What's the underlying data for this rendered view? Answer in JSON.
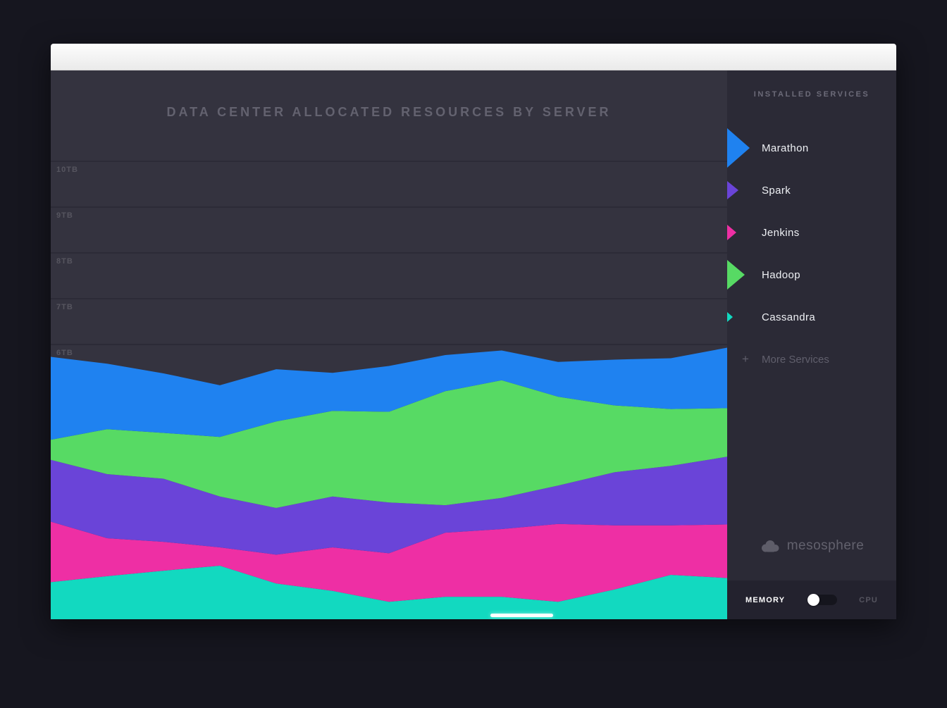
{
  "chart": {
    "title": "DATA CENTER ALLOCATED RESOURCES BY SERVER"
  },
  "chart_data": {
    "type": "area",
    "stacked": true,
    "title": "DATA CENTER ALLOCATED RESOURCES BY SERVER",
    "ylabel": "TB",
    "ylim": [
      0,
      12
    ],
    "grid": true,
    "x_axis_labels_visible": false,
    "y_ticks": [
      {
        "label": "10TB",
        "value": 10
      },
      {
        "label": "9TB",
        "value": 9
      },
      {
        "label": "8TB",
        "value": 8
      },
      {
        "label": "7TB",
        "value": 7
      },
      {
        "label": "6TB",
        "value": 6
      }
    ],
    "series_order": "bottom-to-top",
    "series": [
      {
        "name": "Cassandra",
        "color": "#12d9c0",
        "values": [
          0.81,
          0.94,
          1.06,
          1.17,
          0.78,
          0.62,
          0.38,
          0.49,
          0.49,
          0.38,
          0.65,
          0.97,
          0.9
        ]
      },
      {
        "name": "Jenkins",
        "color": "#ee2fa4",
        "values": [
          1.32,
          0.83,
          0.63,
          0.4,
          0.63,
          0.95,
          1.06,
          1.4,
          1.48,
          1.7,
          1.4,
          1.08,
          1.17
        ]
      },
      {
        "name": "Spark",
        "color": "#6a44d8",
        "values": [
          1.35,
          1.4,
          1.38,
          1.11,
          1.02,
          1.11,
          1.11,
          0.6,
          0.68,
          0.84,
          1.16,
          1.3,
          1.48
        ]
      },
      {
        "name": "Hadoop",
        "color": "#57da64",
        "values": [
          0.44,
          0.98,
          1.0,
          1.3,
          1.89,
          1.87,
          1.98,
          2.49,
          2.57,
          1.94,
          1.46,
          1.24,
          1.06
        ]
      },
      {
        "name": "Marathon",
        "color": "#1f82f0",
        "values": [
          1.81,
          1.43,
          1.3,
          1.13,
          1.14,
          0.83,
          1.0,
          0.79,
          0.65,
          0.76,
          1.0,
          1.11,
          1.32
        ]
      }
    ],
    "style": {
      "background": "#34333f",
      "gridline_color": "#2c2b37",
      "tick_label_color": "#56555f"
    }
  },
  "sidebar": {
    "header": "INSTALLED SERVICES",
    "services": [
      {
        "label": "Marathon",
        "color": "#1f82f0",
        "arrow_size": 56
      },
      {
        "label": "Spark",
        "color": "#6a44d8",
        "arrow_size": 27
      },
      {
        "label": "Jenkins",
        "color": "#ee2fa4",
        "arrow_size": 23
      },
      {
        "label": "Hadoop",
        "color": "#57da64",
        "arrow_size": 43
      },
      {
        "label": "Cassandra",
        "color": "#12d9c0",
        "arrow_size": 14
      }
    ],
    "more_services": {
      "icon": "+",
      "label": "More Services"
    },
    "logo_text": "mesosphere"
  },
  "footer": {
    "left_label": "MEMORY",
    "right_label": "CPU",
    "toggle_state": "memory"
  }
}
